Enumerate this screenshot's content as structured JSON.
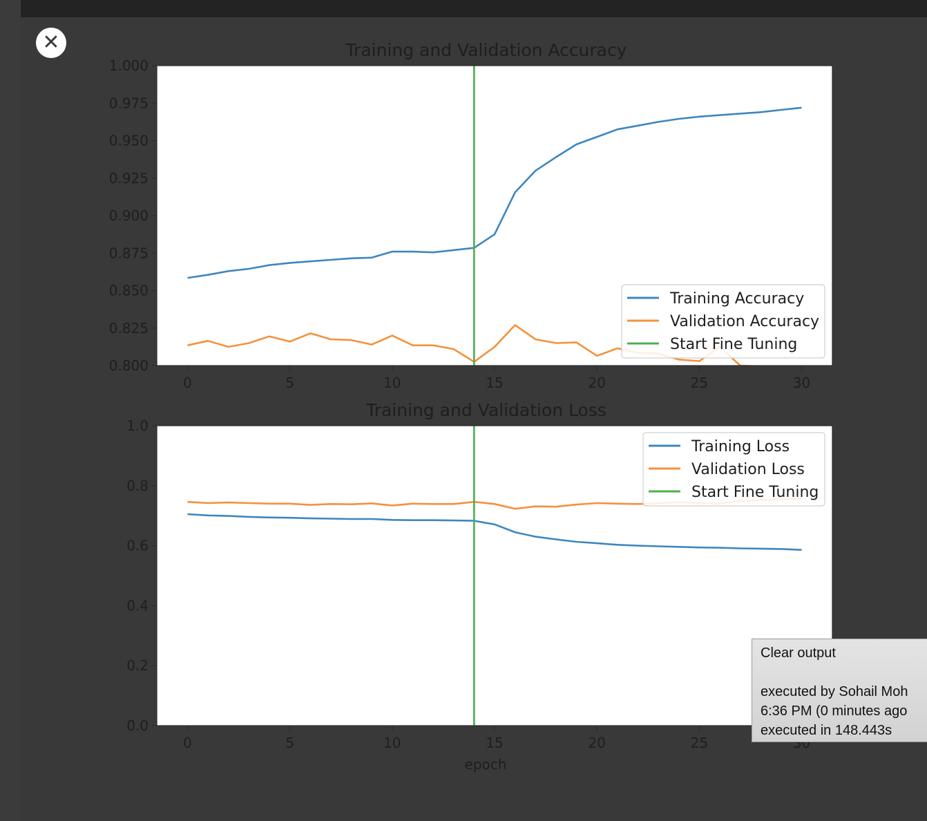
{
  "close_button": {
    "glyph": "✕",
    "icon": "close-icon"
  },
  "tooltip": {
    "action": "Clear output",
    "executed_by": "executed by Sohail Moh",
    "time": "6:36 PM (0 minutes ago",
    "duration": "executed in 148.443s"
  },
  "colors": {
    "background": "#393939",
    "topbar": "#232323",
    "training": "#3d86c0",
    "validation": "#f5913a",
    "fine_tuning": "#4caf50"
  },
  "chart_data": [
    {
      "type": "line",
      "title": "Training and Validation Accuracy",
      "xlabel": "",
      "ylabel": "",
      "xlim": [
        -1.5,
        31.5
      ],
      "ylim": [
        0.8,
        1.0
      ],
      "xticks": [
        0,
        5,
        10,
        15,
        20,
        25,
        30
      ],
      "yticks": [
        "0.800",
        "0.825",
        "0.850",
        "0.875",
        "0.900",
        "0.925",
        "0.950",
        "0.975",
        "1.000"
      ],
      "legend_position": "lower-right",
      "legend": [
        "Training Accuracy",
        "Validation Accuracy",
        "Start Fine Tuning"
      ],
      "fine_tune_epoch": 14,
      "series": [
        {
          "name": "Training Accuracy",
          "x": [
            0,
            1,
            2,
            3,
            4,
            5,
            6,
            7,
            8,
            9,
            10,
            11,
            12,
            13,
            14,
            15,
            16,
            17,
            18,
            19,
            20,
            21,
            22,
            23,
            24,
            25,
            26,
            27,
            28,
            29,
            30
          ],
          "values": [
            0.8585,
            0.8605,
            0.863,
            0.8645,
            0.867,
            0.8685,
            0.8695,
            0.8705,
            0.8715,
            0.872,
            0.876,
            0.876,
            0.8755,
            0.877,
            0.8785,
            0.8875,
            0.9155,
            0.93,
            0.939,
            0.9475,
            0.9525,
            0.9575,
            0.96,
            0.9625,
            0.9645,
            0.966,
            0.967,
            0.968,
            0.969,
            0.9705,
            0.972
          ]
        },
        {
          "name": "Validation Accuracy",
          "x": [
            0,
            1,
            2,
            3,
            4,
            5,
            6,
            7,
            8,
            9,
            10,
            11,
            12,
            13,
            14,
            15,
            16,
            17,
            18,
            19,
            20,
            21,
            22,
            23,
            24,
            25,
            26,
            27,
            28,
            29,
            30
          ],
          "values": [
            0.8135,
            0.8165,
            0.8125,
            0.815,
            0.8195,
            0.816,
            0.8215,
            0.8175,
            0.817,
            0.814,
            0.82,
            0.8135,
            0.8135,
            0.811,
            0.8025,
            0.8125,
            0.827,
            0.8175,
            0.815,
            0.8155,
            0.8065,
            0.8115,
            0.8085,
            0.808,
            0.804,
            0.803,
            0.8125,
            0.8,
            0.7995,
            0.7985,
            0.7975
          ]
        }
      ]
    },
    {
      "type": "line",
      "title": "Training and Validation Loss",
      "xlabel": "epoch",
      "ylabel": "",
      "xlim": [
        -1.5,
        31.5
      ],
      "ylim": [
        0.0,
        1.0
      ],
      "xticks": [
        0,
        5,
        10,
        15,
        20,
        25,
        30
      ],
      "yticks": [
        "0.0",
        "0.2",
        "0.4",
        "0.6",
        "0.8",
        "1.0"
      ],
      "legend_position": "upper-right",
      "legend": [
        "Training Loss",
        "Validation Loss",
        "Start Fine Tuning"
      ],
      "fine_tune_epoch": 14,
      "series": [
        {
          "name": "Training Loss",
          "x": [
            0,
            1,
            2,
            3,
            4,
            5,
            6,
            7,
            8,
            9,
            10,
            11,
            12,
            13,
            14,
            15,
            16,
            17,
            18,
            19,
            20,
            21,
            22,
            23,
            24,
            25,
            26,
            27,
            28,
            29,
            30
          ],
          "values": [
            0.705,
            0.701,
            0.699,
            0.696,
            0.694,
            0.693,
            0.691,
            0.69,
            0.689,
            0.689,
            0.686,
            0.685,
            0.685,
            0.684,
            0.683,
            0.671,
            0.645,
            0.63,
            0.621,
            0.613,
            0.608,
            0.603,
            0.6,
            0.598,
            0.596,
            0.594,
            0.593,
            0.591,
            0.59,
            0.589,
            0.586
          ]
        },
        {
          "name": "Validation Loss",
          "x": [
            0,
            1,
            2,
            3,
            4,
            5,
            6,
            7,
            8,
            9,
            10,
            11,
            12,
            13,
            14,
            15,
            16,
            17,
            18,
            19,
            20,
            21,
            22,
            23,
            24,
            25,
            26,
            27,
            28,
            29,
            30
          ],
          "values": [
            0.746,
            0.742,
            0.744,
            0.742,
            0.74,
            0.74,
            0.736,
            0.739,
            0.738,
            0.741,
            0.734,
            0.74,
            0.739,
            0.739,
            0.746,
            0.739,
            0.723,
            0.731,
            0.73,
            0.737,
            0.742,
            0.74,
            0.739,
            0.741,
            0.745,
            0.742,
            0.74,
            0.749,
            0.752,
            0.755,
            0.757
          ]
        }
      ]
    }
  ]
}
